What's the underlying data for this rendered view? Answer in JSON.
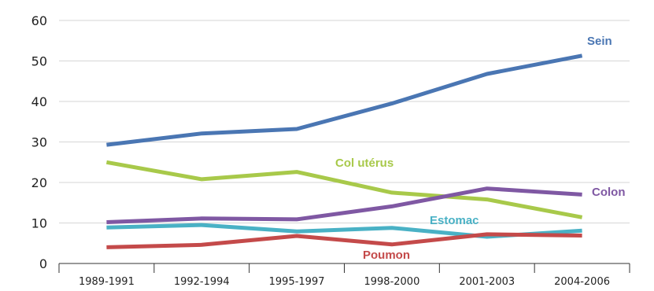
{
  "chart_data": {
    "type": "line",
    "title": "",
    "xlabel": "",
    "ylabel": "",
    "ylim": [
      0,
      60
    ],
    "yticks": [
      0,
      10,
      20,
      30,
      40,
      50,
      60
    ],
    "grid": true,
    "legend": "none",
    "categories": [
      "1989-1991",
      "1992-1994",
      "1995-1997",
      "1998-2000",
      "2001-2003",
      "2004-2006"
    ],
    "series": [
      {
        "name": "Sein",
        "color": "#4a76b3",
        "values": [
          29.3,
          32.1,
          33.2,
          39.5,
          46.8,
          51.3
        ]
      },
      {
        "name": "Col utérus",
        "color": "#a8c94a",
        "values": [
          25.0,
          20.8,
          22.6,
          17.5,
          15.8,
          11.4
        ]
      },
      {
        "name": "Colon",
        "color": "#7f58a3",
        "values": [
          10.2,
          11.1,
          10.9,
          14.1,
          18.5,
          17.0
        ]
      },
      {
        "name": "Estomac",
        "color": "#49b1c5",
        "values": [
          8.9,
          9.5,
          7.9,
          8.8,
          6.6,
          8.1
        ]
      },
      {
        "name": "Poumon",
        "color": "#c44a4a",
        "values": [
          4.0,
          4.6,
          6.8,
          4.7,
          7.2,
          6.9
        ]
      }
    ]
  }
}
